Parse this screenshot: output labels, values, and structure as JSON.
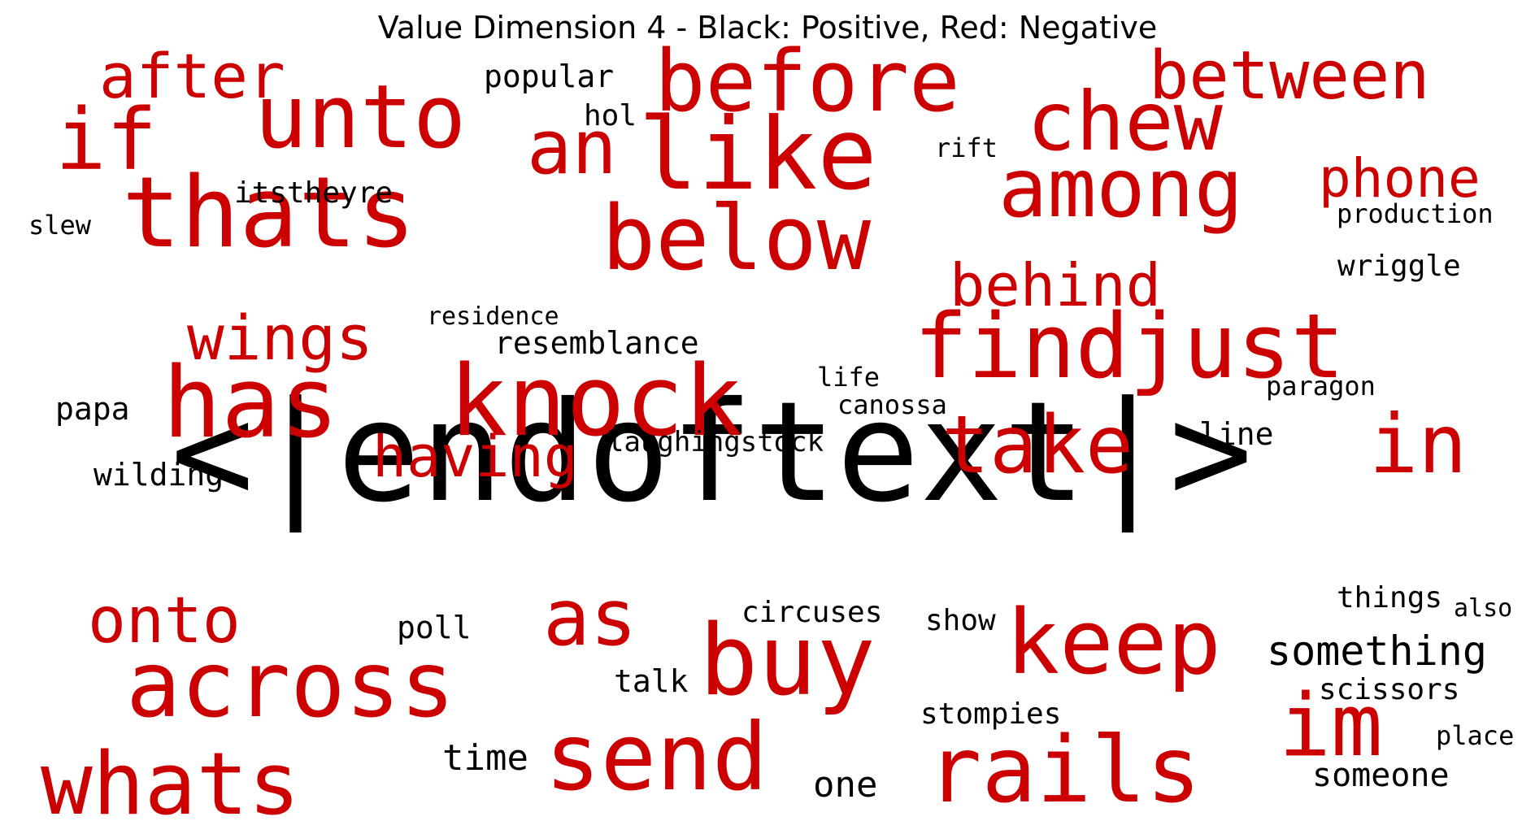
{
  "title": "Value Dimension 4 - Black: Positive, Red: Negative",
  "colors": {
    "positive": "#000000",
    "negative": "#cc0000",
    "background": "#ffffff"
  },
  "words": [
    {
      "text": "<|endoftext|>",
      "sentiment": "positive"
    },
    {
      "text": "thats",
      "sentiment": "negative"
    },
    {
      "text": "like",
      "sentiment": "negative"
    },
    {
      "text": "unto",
      "sentiment": "negative"
    },
    {
      "text": "before",
      "sentiment": "negative"
    },
    {
      "text": "if",
      "sentiment": "negative"
    },
    {
      "text": "an",
      "sentiment": "negative"
    },
    {
      "text": "chew",
      "sentiment": "negative"
    },
    {
      "text": "among",
      "sentiment": "negative"
    },
    {
      "text": "after",
      "sentiment": "negative"
    },
    {
      "text": "between",
      "sentiment": "negative"
    },
    {
      "text": "phone",
      "sentiment": "negative"
    },
    {
      "text": "below",
      "sentiment": "negative"
    },
    {
      "text": "behind",
      "sentiment": "negative"
    },
    {
      "text": "findjust",
      "sentiment": "negative"
    },
    {
      "text": "wings",
      "sentiment": "negative"
    },
    {
      "text": "has",
      "sentiment": "negative"
    },
    {
      "text": "knock",
      "sentiment": "negative"
    },
    {
      "text": "having",
      "sentiment": "negative"
    },
    {
      "text": "take",
      "sentiment": "negative"
    },
    {
      "text": "in",
      "sentiment": "negative"
    },
    {
      "text": "onto",
      "sentiment": "negative"
    },
    {
      "text": "as",
      "sentiment": "negative"
    },
    {
      "text": "across",
      "sentiment": "negative"
    },
    {
      "text": "buy",
      "sentiment": "negative"
    },
    {
      "text": "keep",
      "sentiment": "negative"
    },
    {
      "text": "whats",
      "sentiment": "negative"
    },
    {
      "text": "send",
      "sentiment": "negative"
    },
    {
      "text": "rails",
      "sentiment": "negative"
    },
    {
      "text": "im",
      "sentiment": "negative"
    },
    {
      "text": "popular",
      "sentiment": "positive"
    },
    {
      "text": "hol",
      "sentiment": "positive"
    },
    {
      "text": "rift",
      "sentiment": "positive"
    },
    {
      "text": "itstheyre",
      "sentiment": "positive"
    },
    {
      "text": "slew",
      "sentiment": "positive"
    },
    {
      "text": "production",
      "sentiment": "positive"
    },
    {
      "text": "wriggle",
      "sentiment": "positive"
    },
    {
      "text": "residence",
      "sentiment": "positive"
    },
    {
      "text": "resemblance",
      "sentiment": "positive"
    },
    {
      "text": "life",
      "sentiment": "positive"
    },
    {
      "text": "canossa",
      "sentiment": "positive"
    },
    {
      "text": "paragon",
      "sentiment": "positive"
    },
    {
      "text": "papa",
      "sentiment": "positive"
    },
    {
      "text": "laughingstock",
      "sentiment": "positive"
    },
    {
      "text": "line",
      "sentiment": "positive"
    },
    {
      "text": "wilding",
      "sentiment": "positive"
    },
    {
      "text": "things",
      "sentiment": "positive"
    },
    {
      "text": "also",
      "sentiment": "positive"
    },
    {
      "text": "circuses",
      "sentiment": "positive"
    },
    {
      "text": "show",
      "sentiment": "positive"
    },
    {
      "text": "poll",
      "sentiment": "positive"
    },
    {
      "text": "something",
      "sentiment": "positive"
    },
    {
      "text": "talk",
      "sentiment": "positive"
    },
    {
      "text": "scissors",
      "sentiment": "positive"
    },
    {
      "text": "stompies",
      "sentiment": "positive"
    },
    {
      "text": "place",
      "sentiment": "positive"
    },
    {
      "text": "time",
      "sentiment": "positive"
    },
    {
      "text": "one",
      "sentiment": "positive"
    },
    {
      "text": "someone",
      "sentiment": "positive"
    }
  ]
}
